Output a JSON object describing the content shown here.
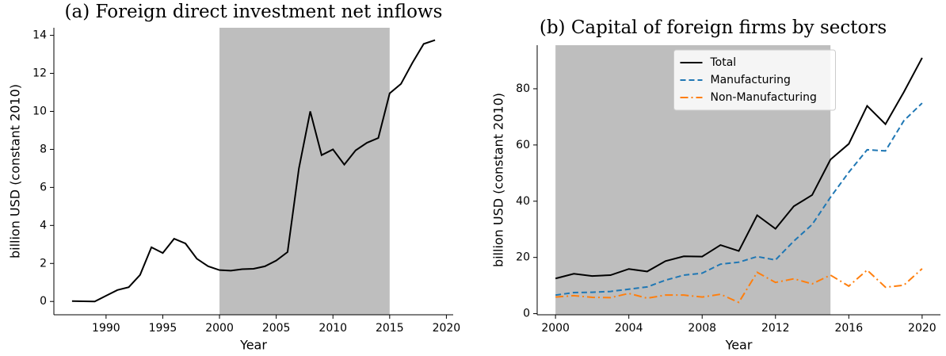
{
  "chart_data": [
    {
      "type": "line",
      "title": "(a) Foreign direct investment net inflows",
      "xlabel": "Year",
      "ylabel": "billion USD (constant 2010)",
      "x": [
        1987,
        1988,
        1989,
        1990,
        1991,
        1992,
        1993,
        1994,
        1995,
        1996,
        1997,
        1998,
        1999,
        2000,
        2001,
        2002,
        2003,
        2004,
        2005,
        2006,
        2007,
        2008,
        2009,
        2010,
        2011,
        2012,
        2013,
        2014,
        2015,
        2016,
        2017,
        2018,
        2019
      ],
      "series": [
        {
          "name": "FDI net inflows",
          "color": "#000000",
          "dash": "solid",
          "values": [
            0.02,
            0.01,
            0.0,
            0.3,
            0.6,
            0.75,
            1.4,
            2.85,
            2.55,
            3.3,
            3.05,
            2.25,
            1.85,
            1.65,
            1.62,
            1.7,
            1.72,
            1.85,
            2.15,
            2.6,
            7.0,
            10.0,
            7.7,
            8.0,
            7.2,
            7.95,
            8.35,
            8.6,
            10.95,
            11.45,
            12.55,
            13.55,
            13.75
          ]
        }
      ],
      "shaded_x": [
        2000,
        2015
      ],
      "shade_color": "#bebebe",
      "xlim": [
        1985.4,
        2020.6
      ],
      "xticks": [
        1990,
        1995,
        2000,
        2005,
        2010,
        2015,
        2020
      ],
      "ylim": [
        -0.7,
        14.4
      ],
      "yticks": [
        0,
        2,
        4,
        6,
        8,
        10,
        12,
        14
      ],
      "legend": false
    },
    {
      "type": "line",
      "title": "(b) Capital of foreign firms by sectors",
      "xlabel": "Year",
      "ylabel": "billion USD (constant 2010)",
      "x": [
        2000,
        2001,
        2002,
        2003,
        2004,
        2005,
        2006,
        2007,
        2008,
        2009,
        2010,
        2011,
        2012,
        2013,
        2014,
        2015,
        2016,
        2017,
        2018,
        2019,
        2020
      ],
      "series": [
        {
          "name": "Total",
          "color": "#000000",
          "dash": "solid",
          "values": [
            12.5,
            14.2,
            13.4,
            13.7,
            15.9,
            15.0,
            18.7,
            20.4,
            20.3,
            24.4,
            22.3,
            35.0,
            30.2,
            38.2,
            42.2,
            54.8,
            60.4,
            73.9,
            67.4,
            78.8,
            91.0
          ]
        },
        {
          "name": "Manufacturing",
          "color": "#1f77b4",
          "dash": "dashed",
          "values": [
            6.6,
            7.5,
            7.6,
            7.9,
            8.7,
            9.5,
            11.9,
            13.7,
            14.4,
            17.6,
            18.3,
            20.3,
            19.1,
            25.8,
            31.7,
            41.4,
            50.3,
            58.3,
            57.9,
            68.6,
            74.9
          ]
        },
        {
          "name": "Non-Manufacturing",
          "color": "#ff7f0e",
          "dash": "dashdot",
          "values": [
            5.9,
            6.4,
            5.8,
            5.7,
            7.2,
            5.5,
            6.6,
            6.6,
            5.9,
            6.9,
            4.0,
            14.7,
            11.1,
            12.4,
            10.6,
            13.7,
            9.8,
            15.5,
            9.4,
            10.1,
            16.0
          ]
        }
      ],
      "shaded_x": [
        2000,
        2015
      ],
      "shade_color": "#bebebe",
      "xlim": [
        1999,
        2021
      ],
      "xticks": [
        2000,
        2004,
        2008,
        2012,
        2016,
        2020
      ],
      "ylim": [
        -0.4,
        95.5
      ],
      "yticks": [
        0,
        20,
        40,
        60,
        80
      ],
      "legend": "upper center"
    }
  ]
}
